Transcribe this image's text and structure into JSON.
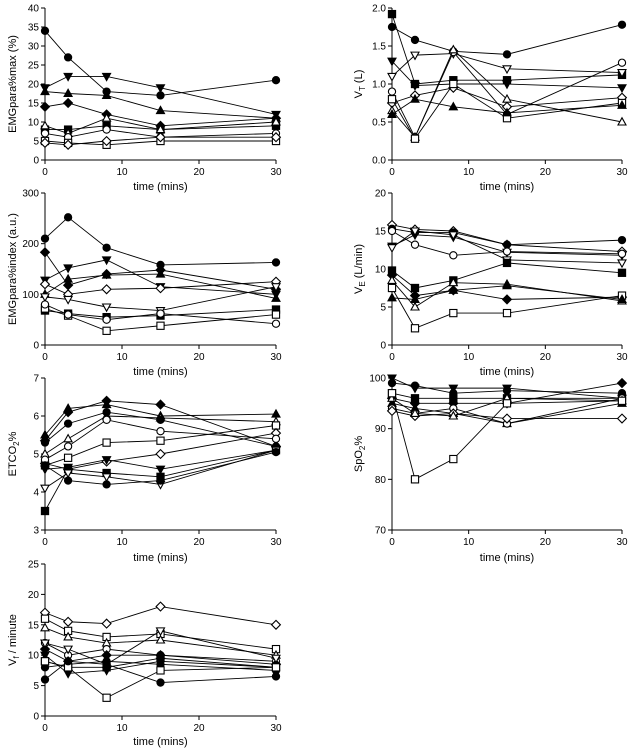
{
  "chart_data": [
    {
      "id": "emg_max",
      "type": "line",
      "title": "",
      "ylabel": "EMGpara%max (%)",
      "xlabel": "time (mins)",
      "x_ticks": [
        0,
        10,
        20,
        30
      ],
      "y_ticks": [
        0,
        5,
        10,
        15,
        20,
        25,
        30,
        35,
        40
      ],
      "xlim": [
        0,
        30
      ],
      "ylim": [
        0,
        40
      ],
      "x": [
        0,
        3,
        8,
        15,
        30
      ],
      "series": [
        {
          "name": "S1",
          "marker": "circle",
          "filled": true,
          "values": [
            34,
            27,
            18,
            17,
            21
          ]
        },
        {
          "name": "S2",
          "marker": "tri_down",
          "filled": true,
          "values": [
            19,
            22,
            22,
            19,
            12
          ]
        },
        {
          "name": "S3",
          "marker": "tri_up",
          "filled": true,
          "values": [
            18,
            17.5,
            17,
            13,
            11
          ]
        },
        {
          "name": "S4",
          "marker": "diamond",
          "filled": true,
          "values": [
            14,
            15,
            12,
            9,
            11
          ]
        },
        {
          "name": "S5",
          "marker": "square",
          "filled": true,
          "values": [
            8,
            8,
            9,
            8,
            9
          ]
        },
        {
          "name": "S6",
          "marker": "tri_up",
          "filled": false,
          "values": [
            9,
            7,
            11,
            8,
            10
          ]
        },
        {
          "name": "S7",
          "marker": "circle",
          "filled": false,
          "values": [
            7,
            6,
            8,
            6,
            7
          ]
        },
        {
          "name": "S8",
          "marker": "square",
          "filled": false,
          "values": [
            5,
            4.5,
            4,
            5,
            5
          ]
        },
        {
          "name": "S9",
          "marker": "diamond",
          "filled": false,
          "values": [
            4.5,
            4,
            5,
            6,
            6
          ]
        }
      ]
    },
    {
      "id": "vt",
      "type": "line",
      "title": "",
      "ylabel": "VT (L)",
      "ylabel_main": "V",
      "ylabel_sub": "T",
      "ylabel_rest": " (L)",
      "xlabel": "time (mins)",
      "x_ticks": [
        0,
        10,
        20,
        30
      ],
      "y_ticks": [
        "0.0",
        "0.5",
        "1.0",
        "1.5",
        "2.0"
      ],
      "xlim": [
        0,
        30
      ],
      "ylim": [
        0,
        2
      ],
      "x": [
        0,
        3,
        8,
        15,
        30
      ],
      "series": [
        {
          "name": "S1",
          "marker": "square",
          "filled": true,
          "values": [
            1.92,
            1.0,
            1.05,
            1.05,
            1.12
          ]
        },
        {
          "name": "S2",
          "marker": "circle",
          "filled": true,
          "values": [
            1.75,
            1.58,
            1.43,
            1.39,
            1.78
          ]
        },
        {
          "name": "S3",
          "marker": "tri_down",
          "filled": true,
          "values": [
            1.3,
            0.98,
            1.0,
            1.0,
            0.95
          ]
        },
        {
          "name": "S4",
          "marker": "tri_down",
          "filled": false,
          "values": [
            1.1,
            1.38,
            1.4,
            1.2,
            1.15
          ]
        },
        {
          "name": "S5",
          "marker": "circle",
          "filled": false,
          "values": [
            0.9,
            0.3,
            1.42,
            0.6,
            1.28
          ]
        },
        {
          "name": "S6",
          "marker": "diamond",
          "filled": false,
          "values": [
            0.75,
            0.85,
            0.95,
            0.7,
            0.82
          ]
        },
        {
          "name": "S7",
          "marker": "tri_up",
          "filled": false,
          "values": [
            0.65,
            0.3,
            1.45,
            0.8,
            0.5
          ]
        },
        {
          "name": "S8",
          "marker": "square",
          "filled": false,
          "values": [
            0.8,
            0.28,
            1.0,
            0.55,
            0.75
          ]
        },
        {
          "name": "S9",
          "marker": "tri_up",
          "filled": true,
          "values": [
            0.6,
            0.8,
            0.7,
            0.62,
            0.72
          ]
        }
      ]
    },
    {
      "id": "emg_index",
      "type": "line",
      "title": "",
      "ylabel": "EMGpara%index (a.u.)",
      "xlabel": "time (mins)",
      "x_ticks": [
        0,
        10,
        20,
        30
      ],
      "y_ticks": [
        0,
        100,
        200,
        300
      ],
      "xlim": [
        0,
        30
      ],
      "ylim": [
        0,
        300
      ],
      "x": [
        0,
        3,
        8,
        15,
        30
      ],
      "series": [
        {
          "name": "S1",
          "marker": "circle",
          "filled": true,
          "values": [
            210,
            252,
            192,
            158,
            163
          ]
        },
        {
          "name": "S2",
          "marker": "diamond",
          "filled": true,
          "values": [
            183,
            118,
            140,
            148,
            110
          ]
        },
        {
          "name": "S3",
          "marker": "tri_down",
          "filled": true,
          "values": [
            128,
            152,
            168,
            115,
            100
          ]
        },
        {
          "name": "S4",
          "marker": "tri_up",
          "filled": true,
          "values": [
            100,
            130,
            138,
            140,
            92
          ]
        },
        {
          "name": "S5",
          "marker": "diamond",
          "filled": false,
          "values": [
            120,
            100,
            110,
            112,
            125
          ]
        },
        {
          "name": "S6",
          "marker": "tri_down",
          "filled": false,
          "values": [
            95,
            90,
            75,
            68,
            115
          ]
        },
        {
          "name": "S7",
          "marker": "square",
          "filled": true,
          "values": [
            68,
            62,
            55,
            58,
            70
          ]
        },
        {
          "name": "S8",
          "marker": "square",
          "filled": false,
          "values": [
            72,
            58,
            28,
            38,
            60
          ]
        },
        {
          "name": "S9",
          "marker": "circle",
          "filled": false,
          "values": [
            80,
            60,
            50,
            62,
            42
          ]
        }
      ]
    },
    {
      "id": "ve",
      "type": "line",
      "title": "",
      "ylabel": "VE (L/min)",
      "ylabel_main": "V",
      "ylabel_sub": "E",
      "ylabel_rest": " (L/min)",
      "xlabel": "time (mins)",
      "x_ticks": [
        0,
        10,
        20,
        30
      ],
      "y_ticks": [
        0,
        5,
        10,
        15,
        20
      ],
      "xlim": [
        0,
        30
      ],
      "ylim": [
        0,
        20
      ],
      "x": [
        0,
        3,
        8,
        15,
        30
      ],
      "series": [
        {
          "name": "S1",
          "marker": "diamond",
          "filled": false,
          "values": [
            15.8,
            15.2,
            15.0,
            13.2,
            12.3
          ]
        },
        {
          "name": "S2",
          "marker": "circle",
          "filled": true,
          "values": [
            15.3,
            14.8,
            14.8,
            13.2,
            13.8
          ]
        },
        {
          "name": "S3",
          "marker": "tri_down",
          "filled": true,
          "values": [
            13.0,
            14.5,
            14.2,
            12.2,
            11.8
          ]
        },
        {
          "name": "S4",
          "marker": "circle",
          "filled": false,
          "values": [
            15.0,
            13.2,
            11.8,
            12.3,
            12.0
          ]
        },
        {
          "name": "S5",
          "marker": "tri_down",
          "filled": false,
          "values": [
            12.8,
            15.0,
            14.5,
            11.2,
            10.8
          ]
        },
        {
          "name": "S6",
          "marker": "square",
          "filled": true,
          "values": [
            9.8,
            7.5,
            8.5,
            10.8,
            9.5
          ]
        },
        {
          "name": "S7",
          "marker": "diamond",
          "filled": true,
          "values": [
            9.2,
            6.5,
            7.2,
            6.0,
            6.3
          ]
        },
        {
          "name": "S8",
          "marker": "tri_up",
          "filled": false,
          "values": [
            8.5,
            5.0,
            8.2,
            8.0,
            5.8
          ]
        },
        {
          "name": "S9",
          "marker": "square",
          "filled": false,
          "values": [
            7.5,
            2.2,
            4.2,
            4.2,
            6.5
          ]
        },
        {
          "name": "S10",
          "marker": "tri_up",
          "filled": true,
          "values": [
            6.2,
            6.0,
            7.2,
            7.8,
            6.0
          ]
        }
      ]
    },
    {
      "id": "etco2",
      "type": "line",
      "title": "",
      "ylabel": "ETCO2%",
      "ylabel_main": "ETCO",
      "ylabel_sub": "2",
      "ylabel_rest": "%",
      "xlabel": "time (mins)",
      "x_ticks": [
        0,
        10,
        20,
        30
      ],
      "y_ticks": [
        3,
        4,
        5,
        6,
        7
      ],
      "xlim": [
        0,
        30
      ],
      "ylim": [
        3,
        7
      ],
      "x": [
        0,
        3,
        8,
        15,
        30
      ],
      "series": [
        {
          "name": "S1",
          "marker": "tri_up",
          "filled": true,
          "values": [
            5.5,
            6.2,
            6.3,
            6.0,
            6.05
          ]
        },
        {
          "name": "S2",
          "marker": "diamond",
          "filled": true,
          "values": [
            5.35,
            6.1,
            6.4,
            6.3,
            5.2
          ]
        },
        {
          "name": "S3",
          "marker": "tri_up",
          "filled": false,
          "values": [
            5.0,
            5.4,
            6.0,
            5.95,
            5.85
          ]
        },
        {
          "name": "S4",
          "marker": "circle",
          "filled": true,
          "values": [
            5.3,
            5.8,
            6.1,
            5.9,
            5.2
          ]
        },
        {
          "name": "S5",
          "marker": "square",
          "filled": false,
          "values": [
            4.7,
            4.9,
            5.3,
            5.35,
            5.75
          ]
        },
        {
          "name": "S6",
          "marker": "diamond",
          "filled": false,
          "values": [
            4.75,
            4.6,
            4.8,
            5.0,
            5.55
          ]
        },
        {
          "name": "S7",
          "marker": "circle",
          "filled": false,
          "values": [
            4.85,
            5.2,
            5.9,
            5.6,
            5.4
          ]
        },
        {
          "name": "S8",
          "marker": "tri_down",
          "filled": true,
          "values": [
            4.6,
            4.65,
            4.85,
            4.6,
            5.1
          ]
        },
        {
          "name": "S9",
          "marker": "square",
          "filled": true,
          "values": [
            3.5,
            4.6,
            4.5,
            4.4,
            5.1
          ]
        },
        {
          "name": "S10",
          "marker": "tri_down",
          "filled": false,
          "values": [
            4.1,
            4.5,
            4.4,
            4.2,
            5.1
          ]
        },
        {
          "name": "S11",
          "marker": "circle",
          "filled": true,
          "values": [
            4.7,
            4.3,
            4.2,
            4.3,
            5.05
          ]
        }
      ]
    },
    {
      "id": "spo2",
      "type": "line",
      "title": "",
      "ylabel": "SpO2%",
      "ylabel_main": "SpO",
      "ylabel_sub": "2",
      "ylabel_rest": "%",
      "xlabel": "time (mins)",
      "x_ticks": [
        0,
        10,
        20,
        30
      ],
      "y_ticks": [
        70,
        80,
        90,
        100
      ],
      "xlim": [
        0,
        30
      ],
      "ylim": [
        70,
        100
      ],
      "x": [
        0,
        3,
        8,
        15,
        30
      ],
      "series": [
        {
          "name": "S1",
          "marker": "tri_down",
          "filled": true,
          "values": [
            100,
            98,
            98,
            98,
            96
          ]
        },
        {
          "name": "S2",
          "marker": "circle",
          "filled": true,
          "values": [
            99,
            98.5,
            97,
            97.5,
            97
          ]
        },
        {
          "name": "S3",
          "marker": "square",
          "filled": true,
          "values": [
            97,
            96,
            96,
            96,
            96
          ]
        },
        {
          "name": "S4",
          "marker": "diamond",
          "filled": true,
          "values": [
            96,
            95,
            95,
            95,
            99
          ]
        },
        {
          "name": "S5",
          "marker": "tri_up",
          "filled": true,
          "values": [
            95,
            94,
            93,
            91,
            95
          ]
        },
        {
          "name": "S6",
          "marker": "circle",
          "filled": false,
          "values": [
            94,
            93,
            94,
            91,
            96
          ]
        },
        {
          "name": "S7",
          "marker": "diamond",
          "filled": false,
          "values": [
            93.5,
            92.5,
            93,
            92,
            92
          ]
        },
        {
          "name": "S8",
          "marker": "tri_up",
          "filled": false,
          "values": [
            96,
            93,
            92.5,
            96,
            95.5
          ]
        },
        {
          "name": "S9",
          "marker": "square",
          "filled": false,
          "values": [
            97,
            80,
            84,
            95,
            95.5
          ]
        }
      ]
    },
    {
      "id": "vf",
      "type": "line",
      "title": "",
      "ylabel": "Vf / minute",
      "ylabel_main": "V",
      "ylabel_sub": "f",
      "ylabel_rest": " / minute",
      "xlabel": "time (mins)",
      "x_ticks": [
        0,
        10,
        20,
        30
      ],
      "y_ticks": [
        0,
        5,
        10,
        15,
        20,
        25
      ],
      "xlim": [
        0,
        30
      ],
      "ylim": [
        0,
        25
      ],
      "x": [
        0,
        3,
        8,
        15,
        30
      ],
      "series": [
        {
          "name": "S1",
          "marker": "diamond",
          "filled": false,
          "values": [
            17,
            15.5,
            15.2,
            18,
            15
          ]
        },
        {
          "name": "S2",
          "marker": "square",
          "filled": false,
          "values": [
            16,
            14,
            13,
            13.5,
            11
          ]
        },
        {
          "name": "S3",
          "marker": "tri_up",
          "filled": false,
          "values": [
            14.5,
            13,
            12,
            12.5,
            10
          ]
        },
        {
          "name": "S4",
          "marker": "circle",
          "filled": false,
          "values": [
            12,
            10,
            11,
            10,
            9
          ]
        },
        {
          "name": "S5",
          "marker": "diamond",
          "filled": true,
          "values": [
            11,
            9,
            10,
            10,
            8.5
          ]
        },
        {
          "name": "S6",
          "marker": "square",
          "filled": true,
          "values": [
            9,
            8,
            8,
            9.5,
            8
          ]
        },
        {
          "name": "S7",
          "marker": "tri_down",
          "filled": true,
          "values": [
            10,
            7,
            7.5,
            9,
            8
          ]
        },
        {
          "name": "S8",
          "marker": "circle",
          "filled": true,
          "values": [
            8,
            8.5,
            9,
            8.5,
            7.5
          ]
        },
        {
          "name": "S9",
          "marker": "square",
          "filled": false,
          "values": [
            9,
            8,
            3,
            7.5,
            8
          ]
        },
        {
          "name": "S10",
          "marker": "tri_down",
          "filled": false,
          "values": [
            12,
            11,
            8.5,
            14,
            9.5
          ]
        },
        {
          "name": "S11",
          "marker": "circle",
          "filled": true,
          "values": [
            6,
            9,
            8.5,
            5.5,
            6.5
          ]
        }
      ]
    }
  ]
}
